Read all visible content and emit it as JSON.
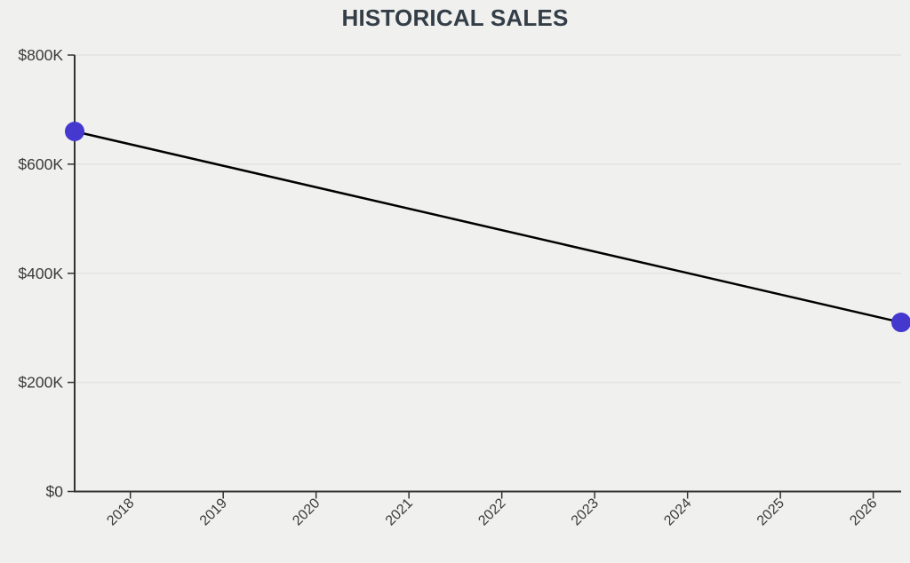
{
  "chart_data": {
    "type": "line",
    "title": "HISTORICAL SALES",
    "series": [
      {
        "name": "historical-sales",
        "points": [
          {
            "x": 2017.4,
            "y": 660000
          },
          {
            "x": 2026.3,
            "y": 310000
          }
        ]
      }
    ],
    "xlabel": "",
    "ylabel": "",
    "xlim": [
      2017.4,
      2026.3
    ],
    "ylim": [
      0,
      800000
    ],
    "x_ticks": [
      {
        "value": 2018,
        "label": "2018"
      },
      {
        "value": 2019,
        "label": "2019"
      },
      {
        "value": 2020,
        "label": "2020"
      },
      {
        "value": 2021,
        "label": "2021"
      },
      {
        "value": 2022,
        "label": "2022"
      },
      {
        "value": 2023,
        "label": "2023"
      },
      {
        "value": 2024,
        "label": "2024"
      },
      {
        "value": 2025,
        "label": "2025"
      },
      {
        "value": 2026,
        "label": "2026"
      }
    ],
    "y_ticks": [
      {
        "value": 0,
        "label": "$0"
      },
      {
        "value": 200000,
        "label": "$200K"
      },
      {
        "value": 400000,
        "label": "$400K"
      },
      {
        "value": 600000,
        "label": "$600K"
      },
      {
        "value": 800000,
        "label": "$800K"
      }
    ],
    "grid": "horizontal",
    "legend": "none",
    "colors": {
      "background": "#f0f0ef",
      "grid": "#e3e3e2",
      "axis": "#333333",
      "tick_label": "#3a3a3a",
      "title": "#333e47",
      "line": "#000000",
      "point": "#4438cf"
    }
  }
}
